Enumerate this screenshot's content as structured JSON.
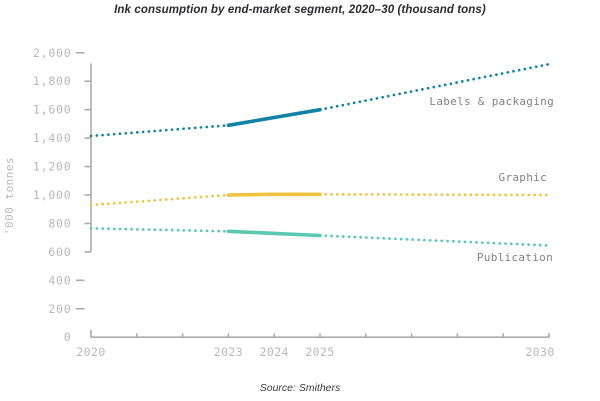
{
  "title": "Ink consumption by end-market segment, 2020–30 (thousand tons)",
  "source_note": "Source: Smithers",
  "chart_data": {
    "type": "line",
    "title": "Ink consumption by end-market segment, 2020–30 (thousand tons)",
    "ylabel": "'000 tonnes",
    "xlabel": "",
    "x": [
      2020,
      2023,
      2024,
      2025,
      2030
    ],
    "xlim": [
      2020,
      2030
    ],
    "ylim": [
      0,
      2000
    ],
    "x_tick_labels": [
      "2020",
      "2023",
      "2024",
      "2025",
      "2030"
    ],
    "x_tick_years": [
      2020,
      2023,
      2024,
      2025,
      2030
    ],
    "x_minor_tick_years": [
      2021,
      2022,
      2023,
      2024,
      2025,
      2026,
      2027,
      2028,
      2029
    ],
    "y_tick_values": [
      0,
      200,
      400,
      600,
      800,
      1000,
      1200,
      1400,
      1600,
      1800,
      2000
    ],
    "y_tick_labels": [
      "0",
      "200",
      "400",
      "600",
      "800",
      "1,000",
      "1,200",
      "1,400",
      "1,600",
      "1,800",
      "2,000"
    ],
    "y_line_tick_values": [
      1800,
      1600,
      1400,
      1200,
      1000,
      800,
      600
    ],
    "y_detached_tick_values": [
      2000,
      400,
      200
    ],
    "grid": false,
    "legend_position": "inline labels at right end of lines",
    "solid_segment_x": [
      2023,
      2025
    ],
    "line_style_note": "dotted projection, solid between 2023 and 2025",
    "series": [
      {
        "name": "Labels & packaging",
        "color": "#1183A4",
        "values": [
          1415,
          1490,
          1545,
          1600,
          1920
        ]
      },
      {
        "name": "Graphic",
        "color": "#EFC342",
        "values": [
          930,
          1000,
          1005,
          1005,
          1000
        ]
      },
      {
        "name": "Publication",
        "color": "#5AC8B2",
        "values": [
          765,
          745,
          730,
          715,
          645
        ]
      }
    ],
    "axis_color": "#ACACAC",
    "tick_label_color": "#B9B9B9",
    "series_label_color": "#828282"
  }
}
